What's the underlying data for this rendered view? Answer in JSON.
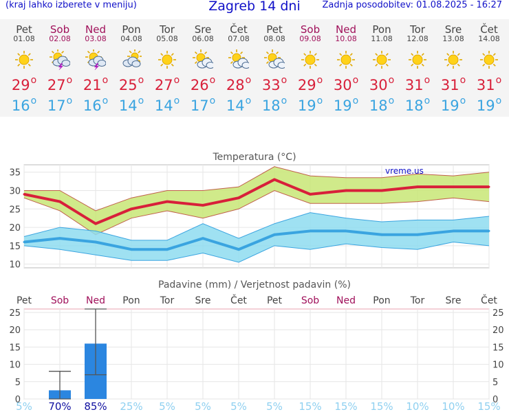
{
  "header": {
    "left_note": "(kraj lahko izberete v meniju)",
    "title": "Zagreb 14 dni",
    "updated": "Zadnja posodobitev: 01.08.2025 - 16:27"
  },
  "colors": {
    "max": "#d8203a",
    "min": "#3aa4e0",
    "weekend": "#a0105a",
    "rain": "#2b86e0",
    "prob_low": "#8fd0f0",
    "prob_high": "#1010a0"
  },
  "days": [
    {
      "name": "Pet",
      "date": "01.08",
      "weekend": false,
      "icon": "sun-icon",
      "tmax": "29",
      "tmin": "16"
    },
    {
      "name": "Sob",
      "date": "02.08",
      "weekend": true,
      "icon": "storm-icon",
      "tmax": "27",
      "tmin": "17"
    },
    {
      "name": "Ned",
      "date": "03.08",
      "weekend": true,
      "icon": "storm-icon",
      "tmax": "21",
      "tmin": "16"
    },
    {
      "name": "Pon",
      "date": "04.08",
      "weekend": false,
      "icon": "cloud-sun-icon",
      "tmax": "25",
      "tmin": "14"
    },
    {
      "name": "Tor",
      "date": "05.08",
      "weekend": false,
      "icon": "sun-icon",
      "tmax": "27",
      "tmin": "14"
    },
    {
      "name": "Sre",
      "date": "06.08",
      "weekend": false,
      "icon": "partly-cloudy-icon",
      "tmax": "26",
      "tmin": "17"
    },
    {
      "name": "Čet",
      "date": "07.08",
      "weekend": false,
      "icon": "partly-cloudy-icon",
      "tmax": "28",
      "tmin": "14"
    },
    {
      "name": "Pet",
      "date": "08.08",
      "weekend": false,
      "icon": "partly-cloudy-icon",
      "tmax": "33",
      "tmin": "18"
    },
    {
      "name": "Sob",
      "date": "09.08",
      "weekend": true,
      "icon": "sun-icon",
      "tmax": "29",
      "tmin": "19"
    },
    {
      "name": "Ned",
      "date": "10.08",
      "weekend": true,
      "icon": "sun-icon",
      "tmax": "30",
      "tmin": "19"
    },
    {
      "name": "Pon",
      "date": "11.08",
      "weekend": false,
      "icon": "sun-icon",
      "tmax": "30",
      "tmin": "18"
    },
    {
      "name": "Tor",
      "date": "12.08",
      "weekend": false,
      "icon": "sun-icon",
      "tmax": "31",
      "tmin": "18"
    },
    {
      "name": "Sre",
      "date": "13.08",
      "weekend": false,
      "icon": "sun-icon",
      "tmax": "31",
      "tmin": "19"
    },
    {
      "name": "Čet",
      "date": "14.08",
      "weekend": false,
      "icon": "sun-icon",
      "tmax": "31",
      "tmin": "19"
    }
  ],
  "chart_data": [
    {
      "type": "line",
      "title": "Temperatura (°C)",
      "watermark": "vreme.us",
      "yticks": [
        10,
        15,
        20,
        25,
        30,
        35
      ],
      "ylim": [
        9,
        37
      ],
      "grid": true,
      "series": [
        {
          "values": [
            29,
            27,
            21,
            25,
            27,
            26,
            28,
            33,
            29,
            30,
            30,
            31,
            31,
            31
          ],
          "band_upper": [
            30,
            30,
            24.5,
            28,
            30,
            30,
            31,
            36.5,
            34,
            33.5,
            33.5,
            34.5,
            34,
            35
          ],
          "band_lower": [
            28,
            24.5,
            18,
            22.5,
            24.5,
            22.5,
            25,
            30,
            26.5,
            26.5,
            26.5,
            27,
            28,
            27
          ]
        },
        {
          "values": [
            16,
            17,
            16,
            14,
            14,
            17,
            14,
            18,
            19,
            19,
            18,
            18,
            19,
            19
          ],
          "band_upper": [
            17.5,
            20,
            19,
            16.5,
            16.5,
            21,
            17,
            21,
            24,
            22.5,
            21.5,
            22,
            22,
            23
          ],
          "band_lower": [
            15,
            14,
            12.5,
            11,
            11,
            13,
            10.5,
            15,
            14,
            15.5,
            14.5,
            14,
            16,
            15
          ]
        }
      ]
    },
    {
      "type": "bar",
      "title": "Padavine (mm) / Verjetnost padavin (%)",
      "categories": [
        "Pet",
        "Sob",
        "Ned",
        "Pon",
        "Tor",
        "Sre",
        "Čet",
        "Pet",
        "Sob",
        "Ned",
        "Pon",
        "Tor",
        "Sre",
        "Čet"
      ],
      "values": [
        0,
        2.5,
        16,
        0,
        0,
        0,
        0,
        0,
        0,
        0,
        0,
        0,
        0,
        0
      ],
      "error_upper": [
        0,
        8,
        26,
        0,
        0,
        0,
        0,
        0,
        0,
        0,
        0,
        0,
        0,
        0
      ],
      "error_lower": [
        0,
        0,
        7,
        0,
        0,
        0,
        0,
        0,
        0,
        0,
        0,
        0,
        0,
        0
      ],
      "probability": [
        "5%",
        "70%",
        "85%",
        "25%",
        "5%",
        "5%",
        "5%",
        "5%",
        "15%",
        "15%",
        "15%",
        "10%",
        "10%",
        "15%"
      ],
      "yticks": [
        0,
        5,
        10,
        15,
        20,
        25
      ],
      "ylim": [
        0,
        26
      ],
      "grid": true
    }
  ]
}
